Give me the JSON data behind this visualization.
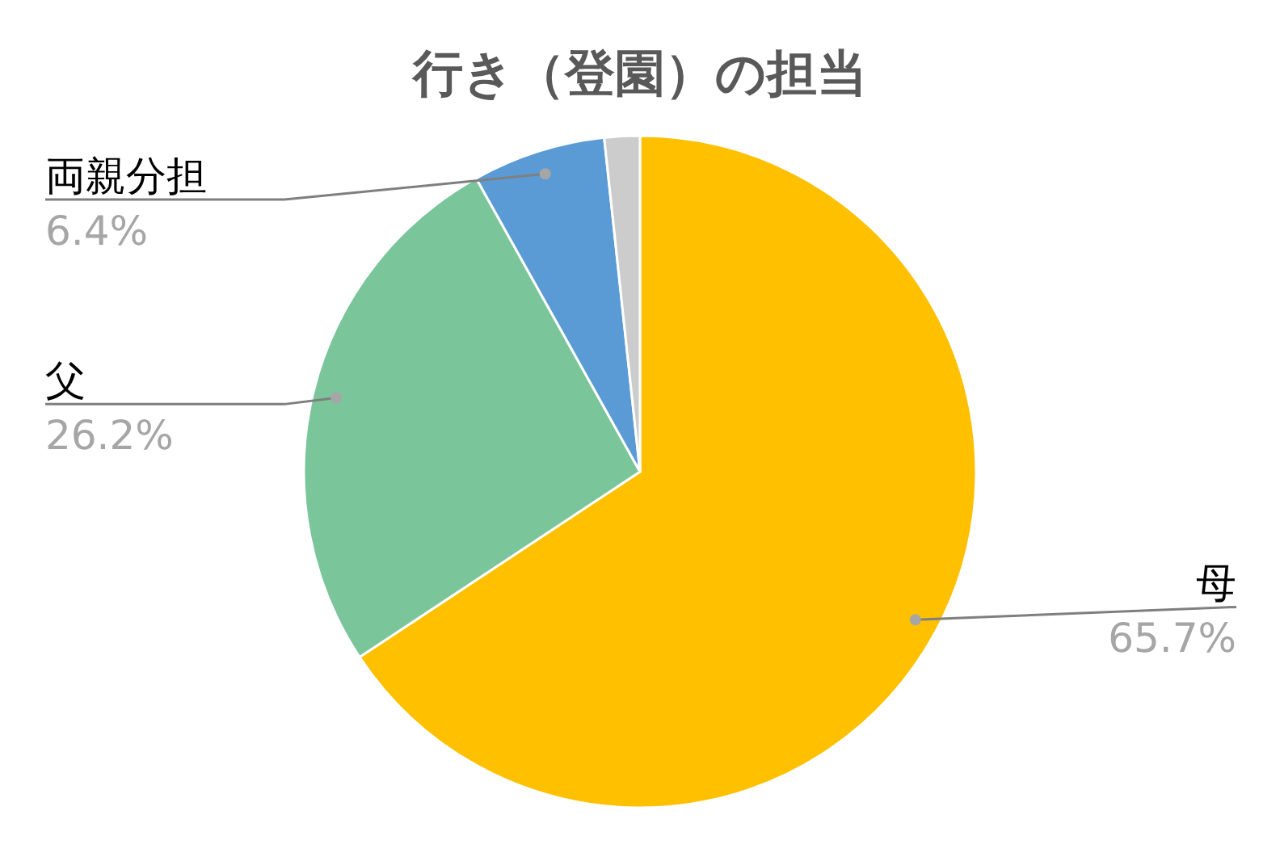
{
  "chart_data": {
    "type": "pie",
    "title": "行き（登園）の担当",
    "categories": [
      "母",
      "父",
      "両親分担",
      null
    ],
    "values": [
      65.7,
      26.2,
      6.4,
      1.7
    ],
    "value_labels": [
      "65.7%",
      "26.2%",
      "6.4%",
      null
    ],
    "colors": [
      "#ffc000",
      "#7bc59b",
      "#5b9bd5",
      "#cccccc"
    ],
    "legend": false
  }
}
